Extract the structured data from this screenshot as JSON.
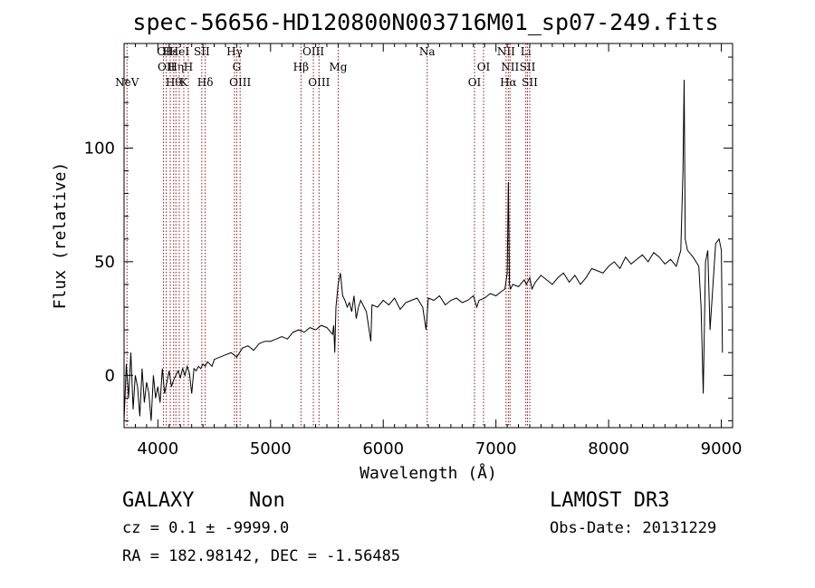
{
  "chart_data": {
    "type": "line",
    "title": "spec-56656-HD120800N003716M01_sp07-249.fits",
    "xlabel": "Wavelength (Å)",
    "ylabel": "Flux (relative)",
    "xlim": [
      3700,
      9100
    ],
    "ylim": [
      -23,
      146
    ],
    "xticks": [
      4000,
      5000,
      6000,
      7000,
      8000,
      9000
    ],
    "yticks": [
      0,
      50,
      100
    ],
    "series": [
      {
        "x": [
          3700,
          3720,
          3740,
          3760,
          3780,
          3800,
          3820,
          3840,
          3860,
          3880,
          3900,
          3920,
          3940,
          3960,
          3980,
          4000,
          4020,
          4040,
          4060,
          4080,
          4100,
          4120,
          4140,
          4160,
          4180,
          4200,
          4220,
          4240,
          4260,
          4280,
          4300,
          4320,
          4340,
          4360,
          4380,
          4400,
          4420,
          4440,
          4460,
          4480,
          4500,
          4550,
          4600,
          4650,
          4700,
          4750,
          4800,
          4850,
          4900,
          4950,
          5000,
          5050,
          5100,
          5150,
          5200,
          5250,
          5300,
          5350,
          5400,
          5450,
          5500,
          5550,
          5560,
          5570,
          5580,
          5600,
          5620,
          5640,
          5660,
          5680,
          5700,
          5720,
          5740,
          5760,
          5780,
          5800,
          5850,
          5890,
          5900,
          5950,
          6000,
          6050,
          6100,
          6150,
          6200,
          6250,
          6300,
          6350,
          6380,
          6400,
          6450,
          6500,
          6550,
          6600,
          6650,
          6700,
          6750,
          6800,
          6830,
          6850,
          6900,
          6950,
          7000,
          7050,
          7080,
          7100,
          7110,
          7120,
          7130,
          7150,
          7200,
          7250,
          7270,
          7300,
          7320,
          7350,
          7400,
          7450,
          7500,
          7550,
          7600,
          7650,
          7700,
          7750,
          7800,
          7850,
          7900,
          7950,
          8000,
          8050,
          8100,
          8150,
          8200,
          8250,
          8300,
          8350,
          8400,
          8450,
          8500,
          8550,
          8600,
          8640,
          8660,
          8670,
          8680,
          8700,
          8750,
          8800,
          8820,
          8840,
          8860,
          8880,
          8900,
          8950,
          8980,
          9000,
          9010
        ],
        "values": [
          -20,
          5,
          -10,
          10,
          -15,
          0,
          -5,
          -18,
          3,
          -12,
          -3,
          -8,
          -20,
          0,
          -10,
          -5,
          -12,
          3,
          -8,
          -3,
          2,
          -5,
          -2,
          0,
          2,
          -1,
          3,
          0,
          4,
          1,
          -8,
          3,
          2,
          4,
          3,
          5,
          4,
          6,
          5,
          4,
          7,
          8,
          9,
          10,
          8,
          12,
          13,
          11,
          14,
          15,
          15,
          16,
          17,
          16,
          19,
          20,
          19,
          21,
          20,
          22,
          21,
          18,
          22,
          10,
          30,
          40,
          45,
          35,
          33,
          30,
          32,
          28,
          35,
          25,
          30,
          33,
          28,
          15,
          31,
          30,
          33,
          31,
          34,
          29,
          32,
          33,
          34,
          30,
          20,
          34,
          33,
          35,
          31,
          33,
          34,
          32,
          33,
          35,
          30,
          33,
          34,
          36,
          35,
          37,
          38,
          45,
          85,
          40,
          38,
          40,
          39,
          42,
          40,
          43,
          38,
          41,
          44,
          42,
          40,
          43,
          45,
          41,
          44,
          40,
          43,
          47,
          46,
          45,
          48,
          50,
          47,
          52,
          49,
          51,
          53,
          50,
          54,
          52,
          49,
          51,
          48,
          55,
          90,
          130,
          60,
          55,
          52,
          48,
          30,
          -8,
          50,
          55,
          20,
          58,
          60,
          55,
          10
        ]
      }
    ],
    "lines": [
      {
        "label": "NeV",
        "x": 3726,
        "row": 3
      },
      {
        "label": "OI",
        "x": 4050,
        "row": 1
      },
      {
        "label": "OII",
        "x": 4075,
        "row": 2
      },
      {
        "label": "Hε",
        "x": 4110,
        "row": 1
      },
      {
        "label": "Hθ",
        "x": 4140,
        "row": 3
      },
      {
        "label": "Hη",
        "x": 4160,
        "row": 2
      },
      {
        "label": "HeI",
        "x": 4190,
        "row": 1
      },
      {
        "label": "K",
        "x": 4230,
        "row": 3
      },
      {
        "label": "H",
        "x": 4270,
        "row": 2
      },
      {
        "label": "SII",
        "x": 4390,
        "row": 1
      },
      {
        "label": "Hδ",
        "x": 4420,
        "row": 3
      },
      {
        "label": "Hγ",
        "x": 4680,
        "row": 1
      },
      {
        "label": "G",
        "x": 4700,
        "row": 2
      },
      {
        "label": "OIII",
        "x": 4730,
        "row": 3
      },
      {
        "label": "Hβ",
        "x": 5270,
        "row": 2
      },
      {
        "label": "OIII",
        "x": 5380,
        "row": 1
      },
      {
        "label": "OIII",
        "x": 5430,
        "row": 3
      },
      {
        "label": "Mg",
        "x": 5600,
        "row": 2
      },
      {
        "label": "Na",
        "x": 6390,
        "row": 1
      },
      {
        "label": "OI",
        "x": 6810,
        "row": 3
      },
      {
        "label": "OI",
        "x": 6890,
        "row": 2
      },
      {
        "label": "NII",
        "x": 7090,
        "row": 1
      },
      {
        "label": "NII",
        "x": 7125,
        "row": 2
      },
      {
        "label": "Hα",
        "x": 7110,
        "row": 3
      },
      {
        "label": "Li",
        "x": 7265,
        "row": 1
      },
      {
        "label": "SII",
        "x": 7280,
        "row": 2
      },
      {
        "label": "SII",
        "x": 7300,
        "row": 3
      }
    ]
  },
  "info": {
    "class": "GALAXY",
    "subclass": "Non",
    "survey": "LAMOST DR3",
    "cz": "cz = 0.1 ± -9999.0",
    "obs_date": "Obs-Date: 20131229",
    "radec": "RA = 182.98142, DEC =  -1.56485"
  }
}
